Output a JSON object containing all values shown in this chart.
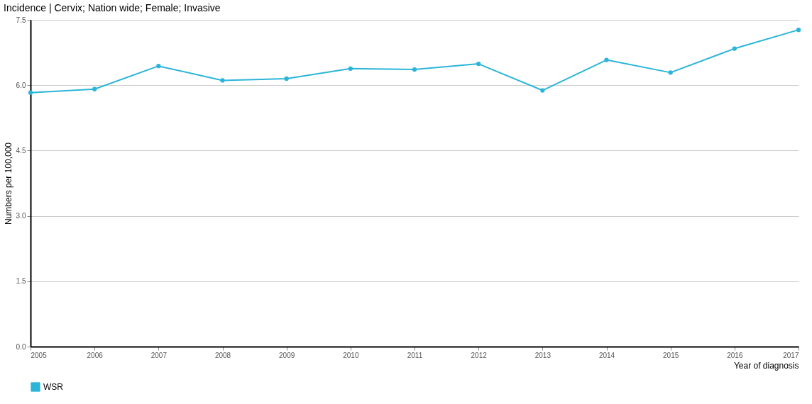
{
  "chart_data": {
    "type": "line",
    "title": "Incidence | Cervix; Nation wide; Female; Invasive",
    "xlabel": "Year of diagnosis",
    "ylabel": "Numbers per 100,000",
    "x": [
      2005,
      2006,
      2007,
      2008,
      2009,
      2010,
      2011,
      2012,
      2013,
      2014,
      2015,
      2016,
      2017
    ],
    "series": [
      {
        "name": "WSR",
        "color": "#2bb5d8",
        "values": [
          5.83,
          5.91,
          6.44,
          6.11,
          6.15,
          6.38,
          6.36,
          6.49,
          5.88,
          6.58,
          6.29,
          6.84,
          7.27
        ]
      }
    ],
    "xlim": [
      2005,
      2017
    ],
    "xticks": [
      2005,
      2006,
      2007,
      2008,
      2009,
      2010,
      2011,
      2012,
      2013,
      2014,
      2015,
      2016,
      2017
    ],
    "ylim": [
      0,
      7.5
    ],
    "yticks": [
      {
        "value": 0,
        "label": "0.0"
      },
      {
        "value": 1.5,
        "label": "1.5"
      },
      {
        "value": 3,
        "label": "3.0"
      },
      {
        "value": 4.5,
        "label": "4.5"
      },
      {
        "value": 6,
        "label": "6.0"
      },
      {
        "value": 7.5,
        "label": "7.5"
      }
    ],
    "grid": "y",
    "legend": "bottom left",
    "marker": "circle",
    "line_style": "solid"
  }
}
